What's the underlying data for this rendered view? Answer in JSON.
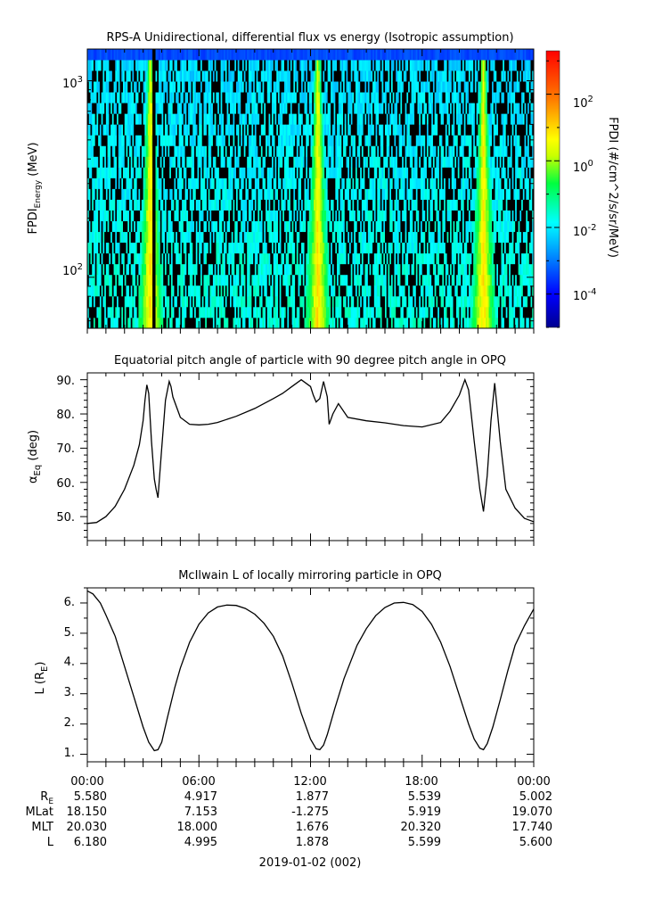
{
  "panels": [
    {
      "title": "RPS-A Unidirectional, differential flux vs energy (Isotropic assumption)",
      "ylabel": "FPDI",
      "ylabel_sub": "Energy",
      "ylabel_unit": " (MeV)",
      "yticks": [
        {
          "base": "10",
          "exp": "3"
        },
        {
          "base": "10",
          "exp": "2"
        }
      ],
      "colorbar_label": "FPDI (#/cm^2/s/sr/MeV)",
      "colorbar_ticks": [
        {
          "base": "10",
          "exp": "2"
        },
        {
          "base": "10",
          "exp": "0"
        },
        {
          "base": "10",
          "exp": "-2"
        },
        {
          "base": "10",
          "exp": "-4"
        }
      ]
    },
    {
      "title": "Equatorial pitch angle of particle with 90 degree pitch angle in OPQ",
      "ylabel_greek": "α",
      "ylabel_sub": "Eq",
      "ylabel_unit": " (deg)",
      "yticks": [
        "90.",
        "80.",
        "70.",
        "60.",
        "50."
      ]
    },
    {
      "title": "McIlwain L of locally mirroring particle in OPQ",
      "ylabel_main": "L (R",
      "ylabel_sub": "E",
      "ylabel_close": ")",
      "yticks": [
        "6.",
        "5.",
        "4.",
        "3.",
        "2.",
        "1."
      ]
    }
  ],
  "xaxis": {
    "tick_labels": [
      "00:00",
      "06:00",
      "12:00",
      "18:00",
      "00:00"
    ],
    "row_labels": [
      {
        "name": "R",
        "sub": "E",
        "values": [
          "5.580",
          "4.917",
          "1.877",
          "5.539",
          "5.002"
        ]
      },
      {
        "name": "MLat",
        "sub": "",
        "values": [
          "18.150",
          "7.153",
          "-1.275",
          "5.919",
          "19.070"
        ]
      },
      {
        "name": "MLT",
        "sub": "",
        "values": [
          "20.030",
          "18.000",
          "1.676",
          "20.320",
          "17.740"
        ]
      },
      {
        "name": "L",
        "sub": "",
        "values": [
          "6.180",
          "4.995",
          "1.878",
          "5.599",
          "5.600"
        ]
      }
    ],
    "date_label": "2019-01-02 (002)"
  },
  "chart_data": [
    {
      "type": "heatmap",
      "title": "RPS-A Unidirectional, differential flux vs energy (Isotropic assumption)",
      "xlabel": "",
      "ylabel": "FPDI Energy (MeV)",
      "x_range_hours": [
        0,
        24
      ],
      "y_range_mev": [
        55,
        1450
      ],
      "y_scale": "log",
      "color_scale": "log",
      "color_range": [
        1e-05,
        2000
      ],
      "colormap": "rainbow (blue-cyan-green-yellow-red)",
      "colorbar_label": "FPDI (#/cm^2/s/sr/MeV)",
      "flux_peaks": [
        {
          "center_hours": 3.4,
          "min_flux_color": "yellow-orange",
          "note": "narrow dropout near 3.6h"
        },
        {
          "center_hours": 12.4,
          "min_flux_color": "yellow-orange"
        },
        {
          "center_hours": 21.3,
          "min_flux_color": "yellow-orange"
        }
      ]
    },
    {
      "type": "line",
      "title": "Equatorial pitch angle of particle with 90 degree pitch angle in OPQ",
      "xlabel": "",
      "ylabel": "αEq (deg)",
      "ylim": [
        43,
        92
      ],
      "series": [
        {
          "x": [
            0,
            0.5,
            1,
            1.5,
            2,
            2.5,
            2.8,
            3.0,
            3.1,
            3.2,
            3.3,
            3.45,
            3.6,
            3.7,
            3.8,
            4.0,
            4.2,
            4.4,
            4.5,
            4.6,
            4.8,
            5,
            5.5,
            6,
            6.5,
            7,
            8,
            9,
            10,
            10.5,
            11,
            11.5,
            12,
            12.15,
            12.3,
            12.5,
            12.7,
            12.9,
            13.0,
            13.2,
            13.5,
            14,
            15,
            16,
            17,
            18,
            19,
            19.5,
            20,
            20.3,
            20.5,
            20.8,
            21.1,
            21.3,
            21.5,
            21.7,
            21.9,
            22.2,
            22.5,
            23,
            23.5,
            24
          ],
          "y": [
            48,
            48.3,
            50,
            53,
            58,
            65,
            71,
            78,
            84,
            88.5,
            86,
            72,
            61,
            58,
            55.5,
            70,
            84,
            89.5,
            88,
            85,
            82,
            79,
            77,
            76.8,
            77,
            77.5,
            79.3,
            81.6,
            84.5,
            86,
            88,
            90,
            88,
            85.5,
            83.5,
            84.5,
            89.5,
            85,
            77,
            80,
            83,
            79,
            78,
            77.4,
            76.6,
            76.2,
            77.5,
            80.8,
            85.5,
            90,
            87,
            72,
            58,
            51.5,
            62,
            78,
            89,
            72,
            58,
            52.5,
            49.5,
            48.5
          ]
        }
      ]
    },
    {
      "type": "line",
      "title": "McIlwain L of locally mirroring particle in OPQ",
      "xlabel": "",
      "ylabel": "L (RE)",
      "ylim": [
        0.75,
        6.5
      ],
      "series": [
        {
          "x": [
            0,
            0.3,
            0.7,
            1,
            1.5,
            2,
            2.5,
            3,
            3.3,
            3.6,
            3.8,
            4.0,
            4.3,
            4.7,
            5,
            5.5,
            6,
            6.5,
            7,
            7.5,
            8,
            8.5,
            9,
            9.5,
            10,
            10.5,
            11,
            11.5,
            12,
            12.3,
            12.5,
            12.7,
            12.9,
            13.3,
            13.8,
            14.5,
            15,
            15.5,
            16,
            16.5,
            17,
            17.5,
            18,
            18.5,
            19,
            19.5,
            20,
            20.5,
            20.8,
            21.1,
            21.3,
            21.5,
            21.8,
            22.2,
            22.6,
            23,
            23.5,
            24
          ],
          "y": [
            6.4,
            6.3,
            6.0,
            5.6,
            4.9,
            3.9,
            2.9,
            1.9,
            1.4,
            1.12,
            1.15,
            1.4,
            2.2,
            3.2,
            3.85,
            4.7,
            5.3,
            5.67,
            5.87,
            5.93,
            5.92,
            5.82,
            5.63,
            5.33,
            4.9,
            4.25,
            3.35,
            2.35,
            1.5,
            1.18,
            1.15,
            1.3,
            1.65,
            2.5,
            3.5,
            4.6,
            5.15,
            5.58,
            5.85,
            6.0,
            6.02,
            5.95,
            5.72,
            5.3,
            4.7,
            3.9,
            2.95,
            2.0,
            1.5,
            1.2,
            1.15,
            1.35,
            1.9,
            2.8,
            3.75,
            4.6,
            5.25,
            5.8
          ]
        }
      ]
    }
  ]
}
